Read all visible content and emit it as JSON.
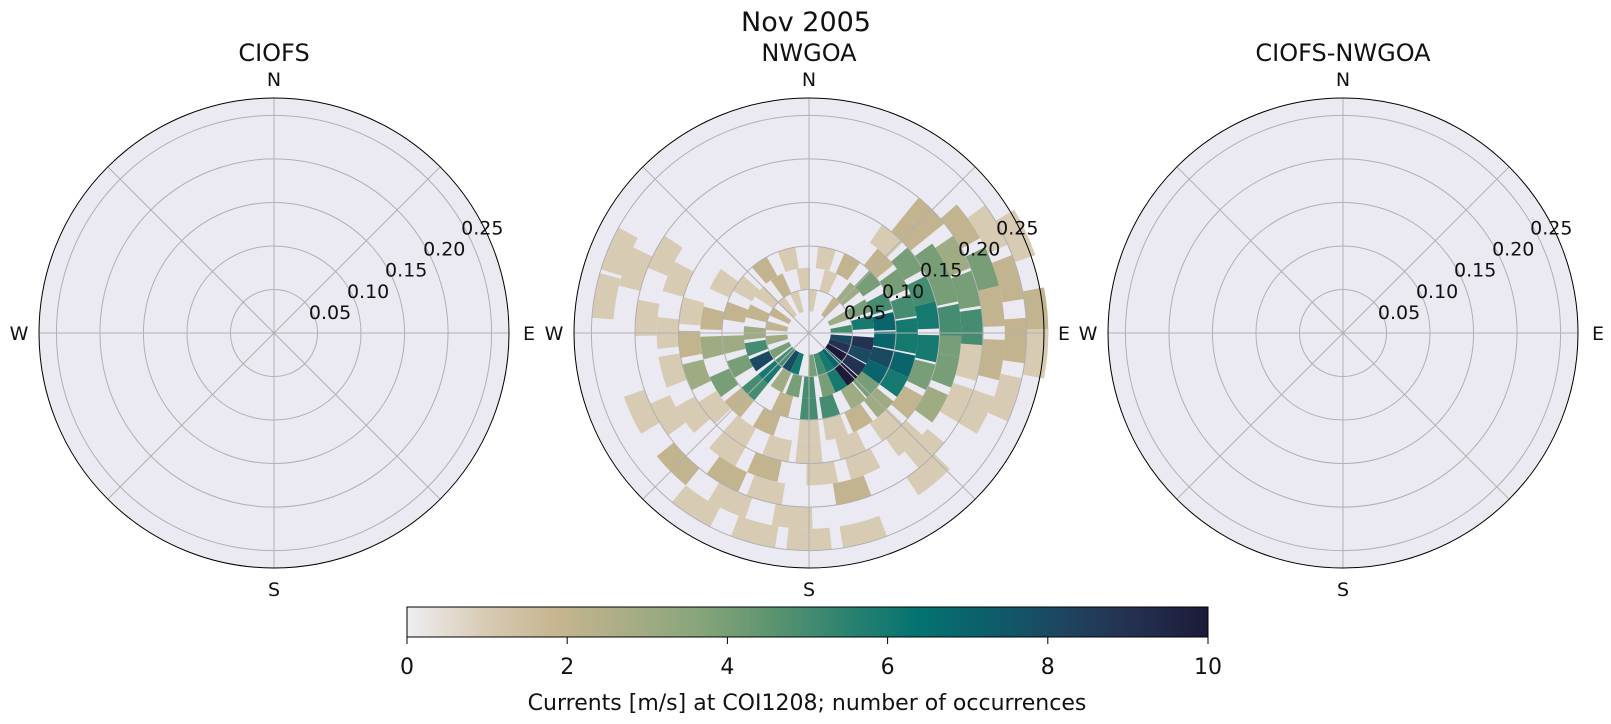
{
  "figure": {
    "suptitle": "Nov 2005"
  },
  "chart_data": [
    {
      "type": "polar-histogram",
      "title": "CIOFS",
      "direction_labels": [
        "N",
        "E",
        "S",
        "W"
      ],
      "radial_ticks": [
        "0.05",
        "0.10",
        "0.15",
        "0.20",
        "0.25"
      ],
      "rlim": [
        0,
        0.27
      ],
      "grid": true,
      "bins": []
    },
    {
      "type": "polar-histogram",
      "title": "NWGOA",
      "direction_labels": [
        "N",
        "E",
        "S",
        "W"
      ],
      "radial_ticks": [
        "0.05",
        "0.10",
        "0.15",
        "0.20",
        "0.25"
      ],
      "rlim": [
        0,
        0.27
      ],
      "grid": true,
      "bins": [
        {
          "dir": 100,
          "speed": 0.025,
          "count": 8
        },
        {
          "dir": 112,
          "speed": 0.025,
          "count": 9
        },
        {
          "dir": 125,
          "speed": 0.025,
          "count": 10
        },
        {
          "dir": 138,
          "speed": 0.025,
          "count": 7
        },
        {
          "dir": 150,
          "speed": 0.025,
          "count": 6
        },
        {
          "dir": 162,
          "speed": 0.025,
          "count": 5
        },
        {
          "dir": 175,
          "speed": 0.025,
          "count": 4
        },
        {
          "dir": 200,
          "speed": 0.025,
          "count": 6
        },
        {
          "dir": 212,
          "speed": 0.025,
          "count": 8
        },
        {
          "dir": 225,
          "speed": 0.025,
          "count": 5
        },
        {
          "dir": 240,
          "speed": 0.025,
          "count": 4
        },
        {
          "dir": 260,
          "speed": 0.025,
          "count": 3
        },
        {
          "dir": 280,
          "speed": 0.025,
          "count": 2
        },
        {
          "dir": 300,
          "speed": 0.025,
          "count": 2
        },
        {
          "dir": 320,
          "speed": 0.025,
          "count": 1
        },
        {
          "dir": 340,
          "speed": 0.025,
          "count": 1
        },
        {
          "dir": 5,
          "speed": 0.025,
          "count": 1
        },
        {
          "dir": 40,
          "speed": 0.025,
          "count": 2
        },
        {
          "dir": 65,
          "speed": 0.025,
          "count": 3
        },
        {
          "dir": 85,
          "speed": 0.025,
          "count": 5
        },
        {
          "dir": 100,
          "speed": 0.05,
          "count": 9
        },
        {
          "dir": 112,
          "speed": 0.05,
          "count": 8
        },
        {
          "dir": 125,
          "speed": 0.05,
          "count": 9
        },
        {
          "dir": 138,
          "speed": 0.05,
          "count": 10
        },
        {
          "dir": 150,
          "speed": 0.05,
          "count": 6
        },
        {
          "dir": 162,
          "speed": 0.05,
          "count": 4
        },
        {
          "dir": 180,
          "speed": 0.05,
          "count": 5
        },
        {
          "dir": 195,
          "speed": 0.05,
          "count": 4
        },
        {
          "dir": 210,
          "speed": 0.05,
          "count": 3
        },
        {
          "dir": 225,
          "speed": 0.05,
          "count": 6
        },
        {
          "dir": 240,
          "speed": 0.05,
          "count": 8
        },
        {
          "dir": 255,
          "speed": 0.05,
          "count": 5
        },
        {
          "dir": 270,
          "speed": 0.05,
          "count": 3
        },
        {
          "dir": 290,
          "speed": 0.05,
          "count": 2
        },
        {
          "dir": 310,
          "speed": 0.05,
          "count": 1
        },
        {
          "dir": 330,
          "speed": 0.05,
          "count": 2
        },
        {
          "dir": 355,
          "speed": 0.05,
          "count": 1
        },
        {
          "dir": 20,
          "speed": 0.05,
          "count": 1
        },
        {
          "dir": 45,
          "speed": 0.05,
          "count": 3
        },
        {
          "dir": 65,
          "speed": 0.05,
          "count": 4
        },
        {
          "dir": 80,
          "speed": 0.05,
          "count": 6
        },
        {
          "dir": 95,
          "speed": 0.075,
          "count": 7
        },
        {
          "dir": 108,
          "speed": 0.075,
          "count": 8
        },
        {
          "dir": 120,
          "speed": 0.075,
          "count": 7
        },
        {
          "dir": 132,
          "speed": 0.075,
          "count": 4
        },
        {
          "dir": 145,
          "speed": 0.075,
          "count": 3
        },
        {
          "dir": 165,
          "speed": 0.075,
          "count": 5
        },
        {
          "dir": 180,
          "speed": 0.075,
          "count": 5
        },
        {
          "dir": 200,
          "speed": 0.075,
          "count": 2
        },
        {
          "dir": 225,
          "speed": 0.075,
          "count": 5
        },
        {
          "dir": 245,
          "speed": 0.075,
          "count": 4
        },
        {
          "dir": 262,
          "speed": 0.075,
          "count": 3
        },
        {
          "dir": 285,
          "speed": 0.075,
          "count": 2
        },
        {
          "dir": 305,
          "speed": 0.075,
          "count": 1
        },
        {
          "dir": 325,
          "speed": 0.075,
          "count": 2
        },
        {
          "dir": 345,
          "speed": 0.075,
          "count": 1
        },
        {
          "dir": 12,
          "speed": 0.075,
          "count": 1
        },
        {
          "dir": 30,
          "speed": 0.075,
          "count": 2
        },
        {
          "dir": 50,
          "speed": 0.075,
          "count": 4
        },
        {
          "dir": 68,
          "speed": 0.075,
          "count": 5
        },
        {
          "dir": 82,
          "speed": 0.075,
          "count": 7
        },
        {
          "dir": 95,
          "speed": 0.1,
          "count": 6
        },
        {
          "dir": 108,
          "speed": 0.1,
          "count": 7
        },
        {
          "dir": 120,
          "speed": 0.1,
          "count": 6
        },
        {
          "dir": 135,
          "speed": 0.1,
          "count": 3
        },
        {
          "dir": 150,
          "speed": 0.1,
          "count": 2
        },
        {
          "dir": 165,
          "speed": 0.1,
          "count": 1
        },
        {
          "dir": 180,
          "speed": 0.1,
          "count": 1
        },
        {
          "dir": 205,
          "speed": 0.1,
          "count": 2
        },
        {
          "dir": 225,
          "speed": 0.1,
          "count": 2
        },
        {
          "dir": 240,
          "speed": 0.1,
          "count": 4
        },
        {
          "dir": 262,
          "speed": 0.1,
          "count": 3
        },
        {
          "dir": 278,
          "speed": 0.1,
          "count": 2
        },
        {
          "dir": 300,
          "speed": 0.1,
          "count": 1
        },
        {
          "dir": 45,
          "speed": 0.1,
          "count": 2
        },
        {
          "dir": 60,
          "speed": 0.1,
          "count": 4
        },
        {
          "dir": 75,
          "speed": 0.1,
          "count": 5
        },
        {
          "dir": 88,
          "speed": 0.1,
          "count": 6
        },
        {
          "dir": 97,
          "speed": 0.125,
          "count": 6
        },
        {
          "dir": 110,
          "speed": 0.125,
          "count": 4
        },
        {
          "dir": 125,
          "speed": 0.125,
          "count": 2
        },
        {
          "dir": 140,
          "speed": 0.125,
          "count": 1
        },
        {
          "dir": 160,
          "speed": 0.125,
          "count": 1
        },
        {
          "dir": 180,
          "speed": 0.125,
          "count": 1
        },
        {
          "dir": 195,
          "speed": 0.125,
          "count": 1
        },
        {
          "dir": 215,
          "speed": 0.125,
          "count": 1
        },
        {
          "dir": 232,
          "speed": 0.125,
          "count": 1
        },
        {
          "dir": 250,
          "speed": 0.125,
          "count": 3
        },
        {
          "dir": 265,
          "speed": 0.125,
          "count": 2
        },
        {
          "dir": 280,
          "speed": 0.125,
          "count": 1
        },
        {
          "dir": 40,
          "speed": 0.125,
          "count": 1
        },
        {
          "dir": 55,
          "speed": 0.125,
          "count": 4
        },
        {
          "dir": 70,
          "speed": 0.125,
          "count": 5
        },
        {
          "dir": 82,
          "speed": 0.125,
          "count": 6
        },
        {
          "dir": 93,
          "speed": 0.15,
          "count": 4
        },
        {
          "dir": 105,
          "speed": 0.15,
          "count": 4
        },
        {
          "dir": 120,
          "speed": 0.15,
          "count": 3
        },
        {
          "dir": 138,
          "speed": 0.15,
          "count": 1
        },
        {
          "dir": 158,
          "speed": 0.15,
          "count": 1
        },
        {
          "dir": 175,
          "speed": 0.15,
          "count": 1
        },
        {
          "dir": 198,
          "speed": 0.15,
          "count": 2
        },
        {
          "dir": 215,
          "speed": 0.15,
          "count": 1
        },
        {
          "dir": 235,
          "speed": 0.15,
          "count": 1
        },
        {
          "dir": 255,
          "speed": 0.15,
          "count": 1
        },
        {
          "dir": 270,
          "speed": 0.15,
          "count": 1
        },
        {
          "dir": 292,
          "speed": 0.15,
          "count": 1
        },
        {
          "dir": 45,
          "speed": 0.15,
          "count": 2
        },
        {
          "dir": 60,
          "speed": 0.15,
          "count": 4
        },
        {
          "dir": 72,
          "speed": 0.15,
          "count": 4
        },
        {
          "dir": 85,
          "speed": 0.15,
          "count": 5
        },
        {
          "dir": 100,
          "speed": 0.175,
          "count": 1
        },
        {
          "dir": 115,
          "speed": 0.175,
          "count": 1
        },
        {
          "dir": 135,
          "speed": 0.175,
          "count": 1
        },
        {
          "dir": 165,
          "speed": 0.175,
          "count": 2
        },
        {
          "dir": 195,
          "speed": 0.175,
          "count": 1
        },
        {
          "dir": 210,
          "speed": 0.175,
          "count": 2
        },
        {
          "dir": 240,
          "speed": 0.175,
          "count": 1
        },
        {
          "dir": 275,
          "speed": 0.175,
          "count": 1
        },
        {
          "dir": 298,
          "speed": 0.175,
          "count": 1
        },
        {
          "dir": 45,
          "speed": 0.175,
          "count": 2
        },
        {
          "dir": 62,
          "speed": 0.175,
          "count": 3
        },
        {
          "dir": 75,
          "speed": 0.175,
          "count": 4
        },
        {
          "dir": 88,
          "speed": 0.175,
          "count": 5
        },
        {
          "dir": 98,
          "speed": 0.2,
          "count": 2
        },
        {
          "dir": 115,
          "speed": 0.2,
          "count": 1
        },
        {
          "dir": 140,
          "speed": 0.2,
          "count": 1
        },
        {
          "dir": 185,
          "speed": 0.2,
          "count": 1
        },
        {
          "dir": 205,
          "speed": 0.2,
          "count": 1
        },
        {
          "dir": 225,
          "speed": 0.2,
          "count": 2
        },
        {
          "dir": 245,
          "speed": 0.2,
          "count": 1
        },
        {
          "dir": 290,
          "speed": 0.2,
          "count": 1
        },
        {
          "dir": 55,
          "speed": 0.2,
          "count": 2
        },
        {
          "dir": 70,
          "speed": 0.2,
          "count": 4
        },
        {
          "dir": 82,
          "speed": 0.2,
          "count": 2
        },
        {
          "dir": 92,
          "speed": 0.225,
          "count": 2
        },
        {
          "dir": 108,
          "speed": 0.225,
          "count": 1
        },
        {
          "dir": 165,
          "speed": 0.225,
          "count": 1
        },
        {
          "dir": 180,
          "speed": 0.225,
          "count": 1
        },
        {
          "dir": 195,
          "speed": 0.225,
          "count": 1
        },
        {
          "dir": 213,
          "speed": 0.225,
          "count": 1
        },
        {
          "dir": 280,
          "speed": 0.225,
          "count": 1
        },
        {
          "dir": 293,
          "speed": 0.225,
          "count": 1
        },
        {
          "dir": 60,
          "speed": 0.225,
          "count": 1
        },
        {
          "dir": 75,
          "speed": 0.225,
          "count": 2
        },
        {
          "dir": 85,
          "speed": 0.25,
          "count": 2
        },
        {
          "dir": 95,
          "speed": 0.25,
          "count": 1
        },
        {
          "dir": 65,
          "speed": 0.25,
          "count": 1
        }
      ]
    },
    {
      "type": "polar-histogram",
      "title": "CIOFS-NWGOA",
      "direction_labels": [
        "N",
        "E",
        "S",
        "W"
      ],
      "radial_ticks": [
        "0.05",
        "0.10",
        "0.15",
        "0.20",
        "0.25"
      ],
      "rlim": [
        0,
        0.27
      ],
      "grid": true,
      "bins": []
    }
  ],
  "colorbar": {
    "label": "Currents [m/s] at COI1208; number of occurrences",
    "ticks": [
      "0",
      "2",
      "4",
      "6",
      "8",
      "10"
    ],
    "range": [
      0,
      10
    ],
    "colors": [
      "#efeef2",
      "#d9cdb8",
      "#c8b690",
      "#a9ad86",
      "#88a57a",
      "#5d9470",
      "#2e8370",
      "#047370",
      "#0c5e6a",
      "#1e4560",
      "#23304f",
      "#1c1a38"
    ]
  }
}
